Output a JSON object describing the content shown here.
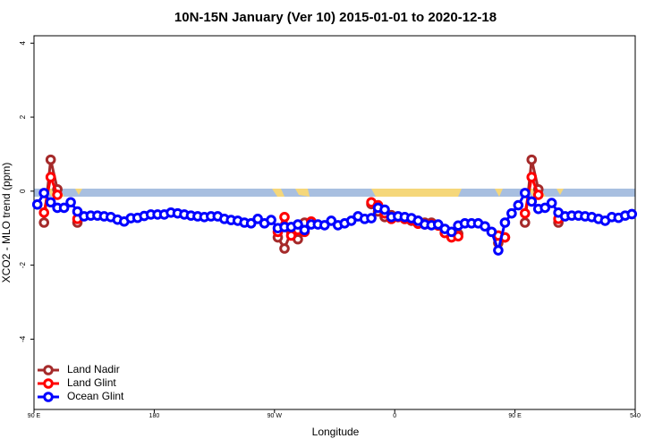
{
  "chart_data": {
    "type": "line",
    "title": "10N-15N January (Ver 10)   2015-01-01 to 2020-12-18",
    "xlabel": "Longitude",
    "ylabel": "XCO2 - MLO trend (ppm)",
    "x": [
      92.5,
      97.5,
      102.5,
      107.5,
      112.5,
      117.5,
      122.5,
      127.5,
      132.5,
      137.5,
      142.5,
      147.5,
      152.5,
      157.5,
      162.5,
      167.5,
      172.5,
      177.5,
      182.5,
      187.5,
      192.5,
      197.5,
      202.5,
      207.5,
      212.5,
      217.5,
      222.5,
      227.5,
      232.5,
      237.5,
      242.5,
      247.5,
      252.5,
      257.5,
      262.5,
      267.5,
      272.5,
      277.5,
      282.5,
      287.5,
      292.5,
      297.5,
      302.5,
      307.5,
      312.5,
      317.5,
      322.5,
      327.5,
      332.5,
      337.5,
      342.5,
      347.5,
      352.5,
      357.5,
      362.5,
      367.5,
      372.5,
      377.5,
      382.5,
      387.5,
      392.5,
      397.5,
      402.5,
      407.5,
      412.5,
      417.5,
      422.5,
      427.5,
      432.5,
      437.5,
      442.5,
      447.5,
      452.5,
      457.5,
      462.5,
      467.5,
      472.5,
      477.5,
      482.5,
      487.5,
      492.5,
      497.5,
      502.5,
      507.5,
      512.5,
      517.5,
      522.5,
      527.5,
      532.5,
      537.5
    ],
    "xlim": [
      90,
      540
    ],
    "xticks": [
      {
        "value": 90,
        "label": "90 E"
      },
      180,
      {
        "value": 270,
        "label": "90 W"
      },
      {
        "value": 360,
        "label": "0"
      },
      {
        "value": 450,
        "label": "90 E"
      },
      540
    ],
    "ylim": [
      -5.9,
      4.2
    ],
    "yticks": [
      4,
      2,
      0,
      -2,
      -4
    ],
    "legend": "bottom-left",
    "series": [
      {
        "name": "Land Nadir",
        "color": "#a52a2a",
        "values": [
          null,
          -0.85,
          0.85,
          0.05,
          null,
          null,
          -0.85,
          null,
          null,
          null,
          null,
          null,
          null,
          null,
          null,
          null,
          null,
          null,
          null,
          null,
          null,
          null,
          null,
          null,
          null,
          null,
          null,
          null,
          null,
          null,
          null,
          null,
          null,
          null,
          null,
          null,
          -1.25,
          -1.55,
          -1.1,
          -1.3,
          -0.85,
          null,
          null,
          null,
          null,
          null,
          null,
          null,
          null,
          null,
          -0.35,
          -0.55,
          -0.7,
          -0.65,
          -0.7,
          -0.75,
          -0.8,
          -0.8,
          -0.85,
          -0.85,
          -0.92,
          -1.05,
          -1.15,
          -1.15,
          null,
          null,
          null,
          null,
          null,
          -1.4,
          -1.25,
          null,
          null,
          -0.85,
          0.85,
          0.05,
          null,
          null,
          -0.85,
          null,
          null,
          null,
          null,
          null,
          null,
          null,
          null,
          null,
          null,
          null
        ]
      },
      {
        "name": "Land Glint",
        "color": "#ff0000",
        "values": [
          null,
          -0.58,
          0.38,
          -0.1,
          null,
          null,
          -0.75,
          null,
          null,
          null,
          null,
          null,
          null,
          null,
          null,
          null,
          null,
          null,
          null,
          null,
          null,
          null,
          null,
          null,
          null,
          null,
          null,
          null,
          null,
          null,
          null,
          null,
          null,
          null,
          null,
          null,
          -1.1,
          -0.7,
          -1.2,
          -1.05,
          -1.1,
          -0.82,
          null,
          null,
          null,
          null,
          null,
          null,
          null,
          null,
          -0.3,
          -0.38,
          -0.6,
          -0.75,
          -0.7,
          -0.75,
          -0.78,
          -0.88,
          -0.9,
          -0.9,
          -0.93,
          -1.13,
          -1.25,
          -1.22,
          null,
          null,
          null,
          null,
          null,
          -1.2,
          -1.25,
          null,
          null,
          -0.6,
          0.38,
          -0.1,
          null,
          null,
          -0.75,
          null,
          null,
          null,
          null,
          null,
          null,
          null,
          null,
          null,
          null,
          null
        ]
      },
      {
        "name": "Ocean Glint",
        "color": "#0000ff",
        "values": [
          -0.36,
          -0.05,
          -0.3,
          -0.45,
          -0.45,
          -0.3,
          -0.55,
          -0.68,
          -0.66,
          -0.66,
          -0.68,
          -0.7,
          -0.77,
          -0.82,
          -0.73,
          -0.72,
          -0.67,
          -0.63,
          -0.63,
          -0.63,
          -0.58,
          -0.6,
          -0.63,
          -0.66,
          -0.68,
          -0.7,
          -0.68,
          -0.68,
          -0.75,
          -0.78,
          -0.8,
          -0.85,
          -0.87,
          -0.75,
          -0.87,
          -0.78,
          -1.0,
          -0.97,
          -0.97,
          -0.9,
          -1.05,
          -0.9,
          -0.9,
          -0.92,
          -0.8,
          -0.92,
          -0.87,
          -0.8,
          -0.68,
          -0.75,
          -0.73,
          -0.45,
          -0.5,
          -0.7,
          -0.68,
          -0.7,
          -0.73,
          -0.8,
          -0.9,
          -0.92,
          -0.9,
          -1.02,
          -1.1,
          -0.93,
          -0.87,
          -0.87,
          -0.87,
          -0.95,
          -1.1,
          -1.6,
          -0.85,
          -0.6,
          -0.38,
          -0.05,
          -0.28,
          -0.48,
          -0.45,
          -0.32,
          -0.58,
          -0.68,
          -0.66,
          -0.66,
          -0.68,
          -0.7,
          -0.75,
          -0.8,
          -0.7,
          -0.72,
          -0.66,
          -0.62
        ]
      }
    ]
  }
}
